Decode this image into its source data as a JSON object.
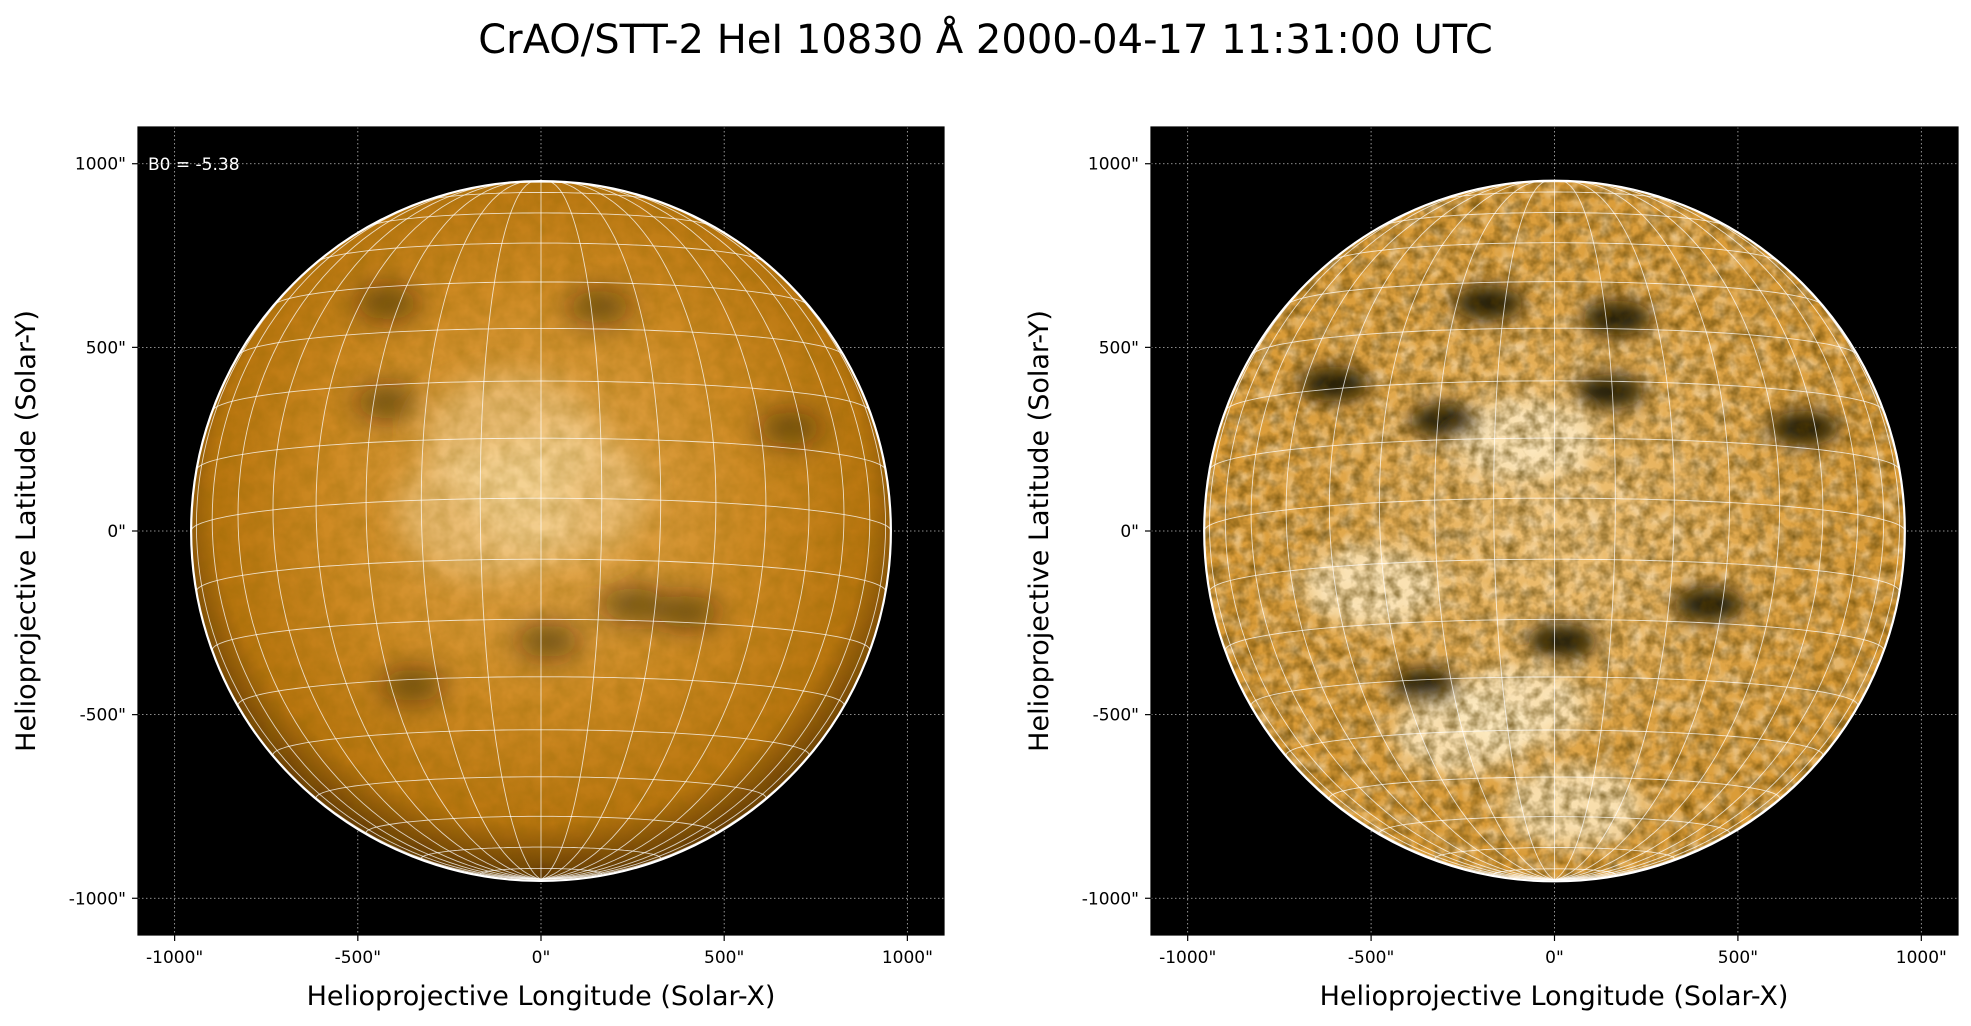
{
  "figure": {
    "title": "CrAO/STT-2 HeI 10830 Å 2000-04-17 11:31:00 UTC"
  },
  "axes": {
    "xlabel": "Helioprojective Longitude (Solar-X)",
    "ylabel": "Helioprojective Latitude (Solar-Y)",
    "xlim": [
      -1100,
      1100
    ],
    "ylim": [
      -1100,
      1100
    ],
    "ticks": [
      -1000,
      -500,
      0,
      500,
      1000
    ],
    "tick_labels": [
      "-1000\"",
      "-500\"",
      "0\"",
      "500\"",
      "1000\""
    ],
    "background": "#000000",
    "grid": true
  },
  "solar_disk": {
    "radius_arcsec": 955,
    "limb_color": "#ffffff",
    "b0_deg": -5.38,
    "lat_grid_step_deg": 10,
    "lon_grid_step_deg": 10
  },
  "panels": [
    {
      "id": "left",
      "annotation": "B0 = -5.38",
      "colormap": {
        "base": "#c47f14",
        "bright": "#f5d59a",
        "dark": "#1a0d00"
      },
      "contrast": "low",
      "features": [
        {
          "x": -80,
          "y": 250,
          "kind": "bright"
        },
        {
          "x": -150,
          "y": 50,
          "kind": "bright"
        },
        {
          "x": 50,
          "y": 100,
          "kind": "bright"
        },
        {
          "x": -420,
          "y": 620,
          "kind": "dark"
        },
        {
          "x": 160,
          "y": 610,
          "kind": "dark"
        },
        {
          "x": 680,
          "y": 280,
          "kind": "dark"
        },
        {
          "x": 20,
          "y": -300,
          "kind": "dark"
        },
        {
          "x": -350,
          "y": -420,
          "kind": "dark"
        },
        {
          "x": 400,
          "y": -220,
          "kind": "dark"
        },
        {
          "x": 250,
          "y": -200,
          "kind": "dark"
        },
        {
          "x": -420,
          "y": 350,
          "kind": "dark"
        }
      ]
    },
    {
      "id": "right",
      "annotation": "",
      "colormap": {
        "base": "#d69527",
        "bright": "#fde9c0",
        "dark": "#120800"
      },
      "contrast": "high",
      "features": [
        {
          "x": -80,
          "y": 250,
          "kind": "bright"
        },
        {
          "x": -100,
          "y": -480,
          "kind": "bright"
        },
        {
          "x": -250,
          "y": -550,
          "kind": "bright"
        },
        {
          "x": 50,
          "y": -750,
          "kind": "bright"
        },
        {
          "x": -500,
          "y": -150,
          "kind": "bright"
        },
        {
          "x": -180,
          "y": 620,
          "kind": "dark"
        },
        {
          "x": 170,
          "y": 580,
          "kind": "dark"
        },
        {
          "x": 680,
          "y": 280,
          "kind": "dark"
        },
        {
          "x": 20,
          "y": -300,
          "kind": "dark"
        },
        {
          "x": -350,
          "y": -420,
          "kind": "dark"
        },
        {
          "x": 420,
          "y": -200,
          "kind": "dark"
        },
        {
          "x": -600,
          "y": 400,
          "kind": "dark"
        },
        {
          "x": -300,
          "y": 300,
          "kind": "dark"
        },
        {
          "x": 150,
          "y": 380,
          "kind": "dark"
        }
      ]
    }
  ]
}
